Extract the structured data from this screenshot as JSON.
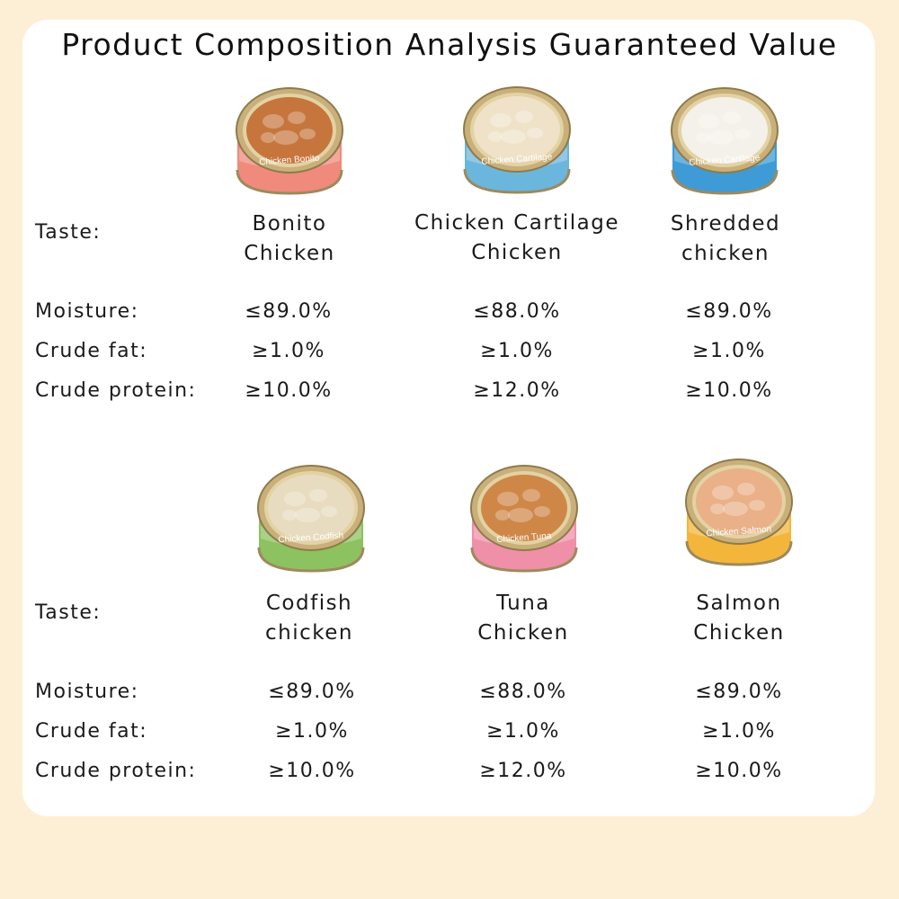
{
  "title": "Product Composition Analysis Guaranteed Value",
  "labels": {
    "taste": "Taste:",
    "moisture": "Moisture:",
    "fat": "Crude fat:",
    "protein": "Crude protein:"
  },
  "products": [
    {
      "line1": "Bonito",
      "line2": "Chicken",
      "can_label": "Chicken Bonito",
      "moisture": "≤89.0%",
      "fat": "≥1.0%",
      "protein": "≥10.0%",
      "color": "#ef8a7c",
      "food": "#c6763d"
    },
    {
      "line1": "Chicken Cartilage",
      "line2": "Chicken",
      "can_label": "Chicken Cartilage",
      "moisture": "≤88.0%",
      "fat": "≥1.0%",
      "protein": "≥12.0%",
      "color": "#6bb6dc",
      "food": "#efe2c8"
    },
    {
      "line1": "Shredded",
      "line2": "chicken",
      "can_label": "Chicken Cartilage",
      "moisture": "≤89.0%",
      "fat": "≥1.0%",
      "protein": "≥10.0%",
      "color": "#3e9bd6",
      "food": "#f4f1ea"
    },
    {
      "line1": "Codfish",
      "line2": "chicken",
      "can_label": "Chicken Codfish",
      "moisture": "≤89.0%",
      "fat": "≥1.0%",
      "protein": "≥10.0%",
      "color": "#8cc25f",
      "food": "#e8dcc0"
    },
    {
      "line1": "Tuna",
      "line2": "Chicken",
      "can_label": "Chicken Tuna",
      "moisture": "≤88.0%",
      "fat": "≥1.0%",
      "protein": "≥12.0%",
      "color": "#ef8fa8",
      "food": "#cf8748"
    },
    {
      "line1": "Salmon",
      "line2": "Chicken",
      "can_label": "Chicken Salmon",
      "moisture": "≤89.0%",
      "fat": "≥1.0%",
      "protein": "≥10.0%",
      "color": "#f4b63a",
      "food": "#eab088"
    }
  ]
}
